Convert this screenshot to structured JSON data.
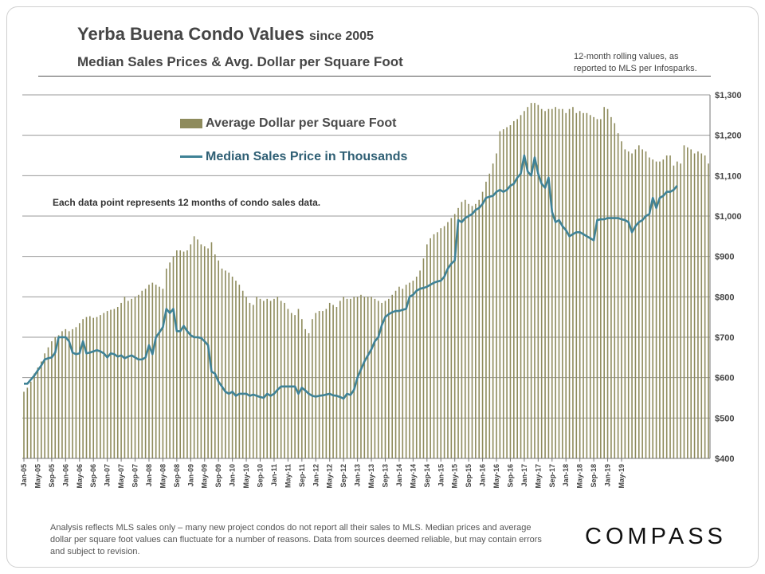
{
  "header": {
    "title": "Yerba Buena Condo Values",
    "title_suffix": "since 2005",
    "subtitle": "Median Sales Prices & Avg. Dollar per Square Foot",
    "note_line1": "12-month rolling values, as",
    "note_line2": "reported to MLS per Infosparks."
  },
  "annotation": "Each data point represents 12 months of condo sales data.",
  "footnote": "Analysis reflects MLS sales only – many new project condos do not report all their sales to MLS. Median prices and average dollar per square foot values can fluctuate for a number of reasons. Data from sources deemed reliable, but may contain errors and subject to revision.",
  "logo": "COMPASS",
  "colors": {
    "bars": "#8e8b5c",
    "line": "#3f8296",
    "grid": "#9a9a9a"
  },
  "chart_data": {
    "type": "bar+line",
    "title": "Yerba Buena Condo Values since 2005",
    "subtitle": "Median Sales Prices & Avg. Dollar per Square Foot",
    "y_axis_position": "right",
    "ylim": [
      400,
      1300
    ],
    "yticks": [
      400,
      500,
      600,
      700,
      800,
      900,
      1000,
      1100,
      1200,
      1300
    ],
    "ytick_labels": [
      "$400",
      "$500",
      "$600",
      "$700",
      "$800",
      "$900",
      "$1,000",
      "$1,100",
      "$1,200",
      "$1,300"
    ],
    "x_start": "Jan-05",
    "x_end": "May-19",
    "x_tick_every_months": 4,
    "xtick_labels": [
      "Jan-05",
      "May-05",
      "Sep-05",
      "Jan-06",
      "May-06",
      "Sep-06",
      "Jan-07",
      "May-07",
      "Sep-07",
      "Jan-08",
      "May-08",
      "Sep-08",
      "Jan-09",
      "May-09",
      "Sep-09",
      "Jan-10",
      "May-10",
      "Sep-10",
      "Jan-11",
      "May-11",
      "Sep-11",
      "Jan-12",
      "May-12",
      "Sep-12",
      "Jan-13",
      "May-13",
      "Sep-13",
      "Jan-14",
      "May-14",
      "Sep-14",
      "Jan-15",
      "May-15",
      "Sep-15",
      "Jan-16",
      "May-16",
      "Sep-16",
      "Jan-17",
      "May-17",
      "Sep-17",
      "Jan-18",
      "May-18",
      "Sep-18",
      "Jan-19",
      "May-19"
    ],
    "series": [
      {
        "name": "Average Dollar per Square Foot",
        "kind": "bar",
        "values": [
          565,
          575,
          590,
          610,
          625,
          640,
          660,
          675,
          690,
          700,
          705,
          715,
          720,
          715,
          720,
          725,
          735,
          745,
          750,
          752,
          748,
          750,
          755,
          760,
          765,
          768,
          770,
          775,
          785,
          800,
          790,
          795,
          800,
          805,
          815,
          820,
          830,
          835,
          830,
          825,
          820,
          870,
          885,
          900,
          915,
          915,
          912,
          915,
          930,
          950,
          942,
          930,
          925,
          920,
          935,
          905,
          890,
          870,
          865,
          860,
          850,
          840,
          830,
          815,
          800,
          785,
          780,
          800,
          795,
          790,
          795,
          790,
          795,
          800,
          790,
          785,
          770,
          760,
          755,
          770,
          745,
          720,
          710,
          745,
          760,
          765,
          765,
          770,
          785,
          780,
          775,
          790,
          800,
          795,
          795,
          800,
          800,
          805,
          800,
          800,
          800,
          795,
          790,
          785,
          790,
          795,
          805,
          815,
          825,
          820,
          830,
          835,
          840,
          850,
          865,
          895,
          930,
          945,
          955,
          960,
          970,
          975,
          985,
          995,
          1005,
          1020,
          1035,
          1040,
          1030,
          1025,
          1030,
          1040,
          1060,
          1085,
          1105,
          1130,
          1155,
          1210,
          1215,
          1220,
          1225,
          1235,
          1240,
          1250,
          1260,
          1270,
          1280,
          1280,
          1275,
          1265,
          1260,
          1265,
          1265,
          1270,
          1265,
          1265,
          1255,
          1265,
          1270,
          1255,
          1260,
          1255,
          1255,
          1250,
          1245,
          1240,
          1240,
          1270,
          1265,
          1245,
          1230,
          1205,
          1185,
          1165,
          1160,
          1155,
          1165,
          1175,
          1165,
          1160,
          1145,
          1140,
          1135,
          1135,
          1140,
          1150,
          1150,
          1125,
          1135,
          1130,
          1175,
          1170,
          1165,
          1155,
          1160,
          1155,
          1150,
          1130
        ]
      },
      {
        "name": "Median Sales Price in Thousands",
        "kind": "line",
        "values": [
          585,
          585,
          595,
          605,
          618,
          630,
          645,
          648,
          650,
          662,
          700,
          700,
          700,
          690,
          662,
          658,
          660,
          690,
          660,
          662,
          665,
          668,
          665,
          660,
          650,
          660,
          658,
          652,
          655,
          648,
          652,
          655,
          650,
          645,
          645,
          650,
          680,
          658,
          700,
          712,
          725,
          770,
          760,
          770,
          715,
          715,
          728,
          715,
          705,
          700,
          700,
          698,
          690,
          680,
          615,
          610,
          590,
          578,
          565,
          560,
          565,
          555,
          560,
          560,
          560,
          555,
          558,
          555,
          552,
          550,
          560,
          555,
          560,
          570,
          578,
          578,
          578,
          578,
          578,
          560,
          575,
          568,
          560,
          555,
          553,
          555,
          556,
          558,
          560,
          556,
          555,
          552,
          548,
          560,
          557,
          570,
          600,
          620,
          640,
          655,
          670,
          690,
          700,
          730,
          750,
          757,
          762,
          765,
          765,
          768,
          770,
          800,
          805,
          815,
          820,
          822,
          825,
          830,
          835,
          838,
          840,
          850,
          870,
          882,
          890,
          990,
          985,
          995,
          1000,
          1005,
          1015,
          1020,
          1030,
          1045,
          1048,
          1050,
          1060,
          1065,
          1060,
          1065,
          1075,
          1080,
          1095,
          1105,
          1150,
          1110,
          1100,
          1145,
          1105,
          1080,
          1070,
          1095,
          1010,
          985,
          990,
          975,
          965,
          950,
          955,
          960,
          960,
          955,
          950,
          945,
          940,
          990,
          992,
          992,
          995,
          995,
          995,
          995,
          992,
          990,
          985,
          960,
          975,
          985,
          990,
          1000,
          1005,
          1045,
          1020,
          1045,
          1050,
          1060,
          1060,
          1065,
          1075
        ]
      }
    ],
    "legend": "top-left"
  }
}
